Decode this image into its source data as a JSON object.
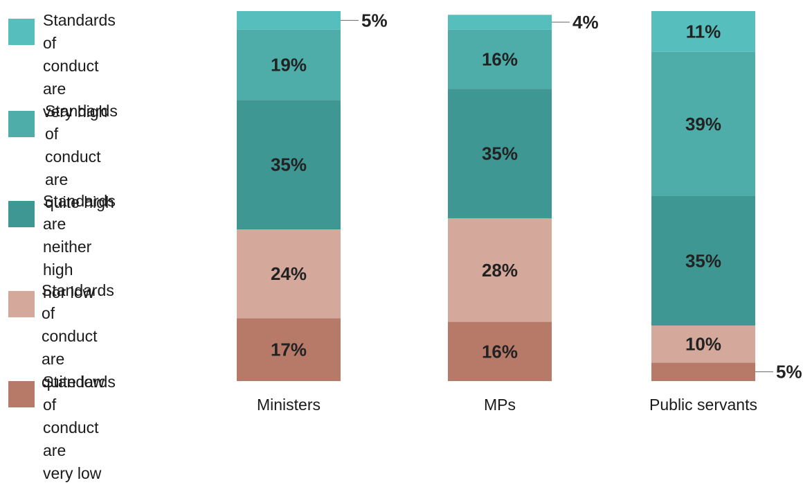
{
  "chart_data": {
    "type": "bar",
    "stacked": true,
    "categories": [
      "Ministers",
      "MPs",
      "Public servants"
    ],
    "series": [
      {
        "name": "Standards of conduct are very low",
        "values": [
          17,
          16,
          5
        ],
        "labels": [
          "17%",
          "16%",
          "5%"
        ],
        "color": "#b87a68"
      },
      {
        "name": "Standards of conduct are quite low",
        "values": [
          24,
          28,
          10
        ],
        "labels": [
          "24%",
          "28%",
          "10%"
        ],
        "color": "#d4a99b"
      },
      {
        "name": "Standards are neither high nor low",
        "values": [
          35,
          35,
          35
        ],
        "labels": [
          "35%",
          "35%",
          "35%"
        ],
        "color": "#3f9793"
      },
      {
        "name": "Standards of conduct are quite high",
        "values": [
          19,
          16,
          39
        ],
        "labels": [
          "19%",
          "16%",
          "39%"
        ],
        "color": "#4eada9"
      },
      {
        "name": "Standards of conduct are very high",
        "values": [
          5,
          4,
          11
        ],
        "labels": [
          "5%",
          "4%",
          "11%"
        ],
        "color": "#56bfbd"
      }
    ],
    "legend": {
      "placement": "left",
      "items": [
        "Standards of\nconduct are\nvery high",
        "Standards of\nconduct are\nquite high",
        "Standards are\nneither high\nnor low",
        "Standards of\nconduct are\nquite low",
        "Standards of\nconduct are\nvery low"
      ],
      "colors": [
        "#56bfbd",
        "#4eada9",
        "#3f9793",
        "#d4a99b",
        "#b87a68"
      ]
    },
    "title": "",
    "xlabel": "",
    "ylabel": "",
    "grid": false
  }
}
